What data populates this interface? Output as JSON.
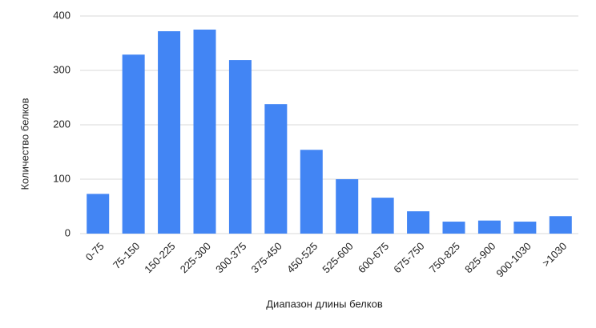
{
  "chart_data": {
    "type": "bar",
    "x_label": "Диапазон длины белков",
    "y_label": "Количество белков",
    "categories": [
      "0-75",
      "75-150",
      "150-225",
      "225-300",
      "300-375",
      "375-450",
      "450-525",
      "525-600",
      "600-675",
      "675-750",
      "750-825",
      "825-900",
      "900-1030",
      ">1030"
    ],
    "values": [
      73,
      329,
      372,
      375,
      319,
      238,
      154,
      100,
      66,
      41,
      22,
      24,
      22,
      32
    ],
    "color": "#4285f4",
    "ylim": [
      0,
      400
    ],
    "yticks": [
      0,
      100,
      200,
      300,
      400
    ],
    "grid": true
  }
}
